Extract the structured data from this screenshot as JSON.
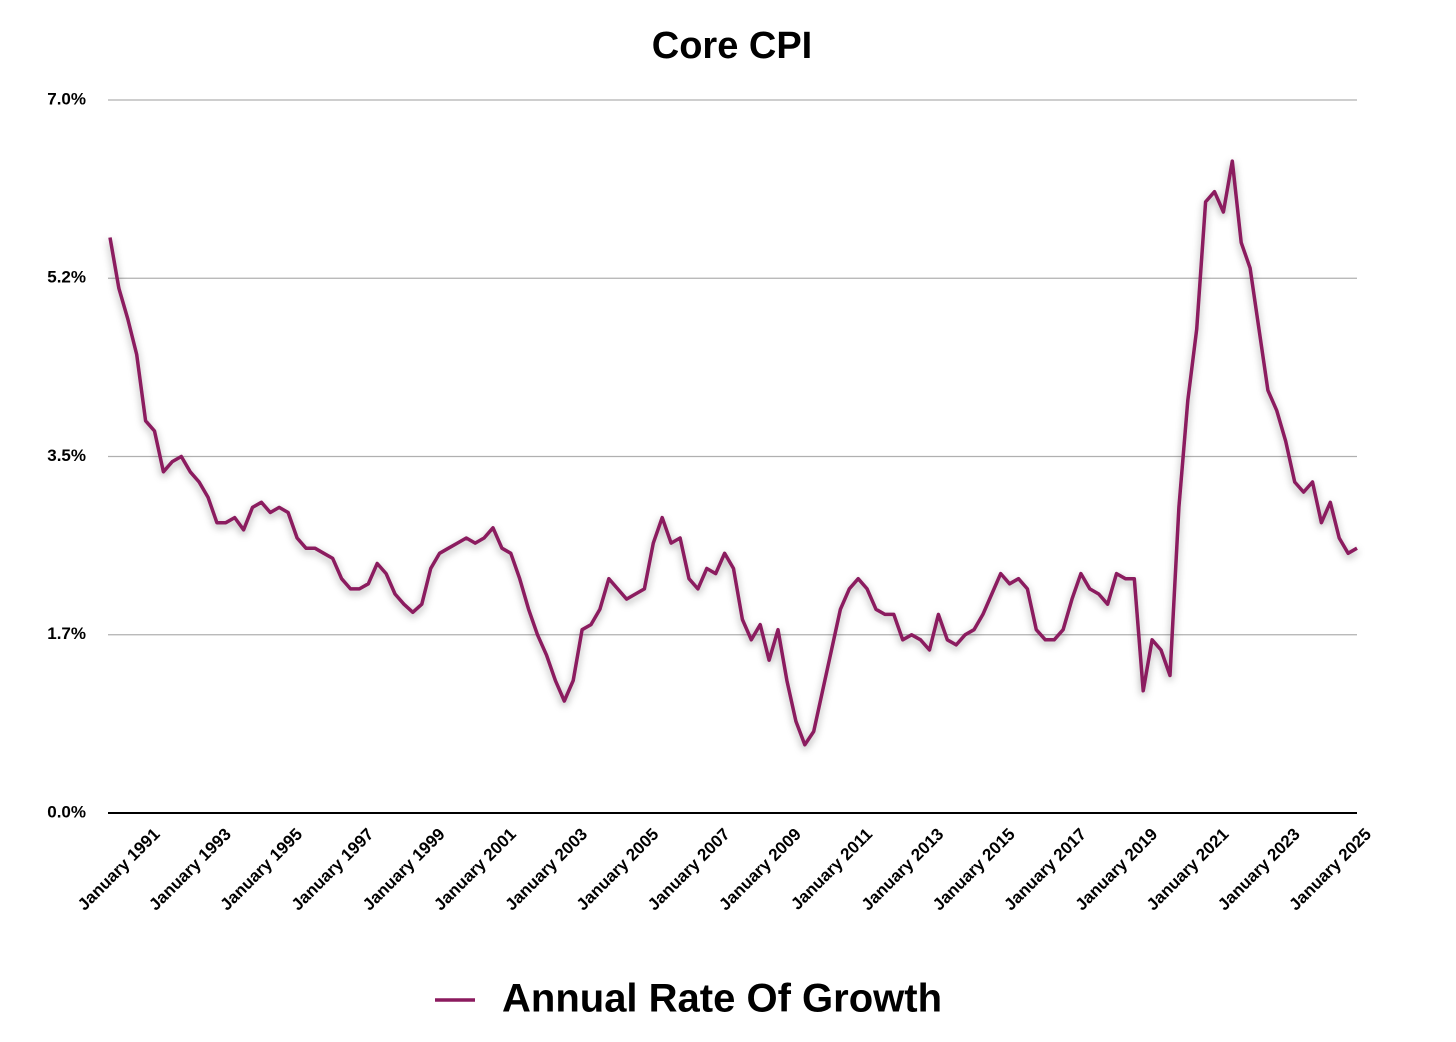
{
  "chart_data": {
    "type": "line",
    "title": "Core CPI",
    "categories": [
      null,
      null,
      null,
      null,
      "January 1991",
      null,
      null,
      null,
      null,
      null,
      null,
      null,
      "January 1993",
      null,
      null,
      null,
      null,
      null,
      null,
      null,
      "January 1995",
      null,
      null,
      null,
      null,
      null,
      null,
      null,
      "January 1997",
      null,
      null,
      null,
      null,
      null,
      null,
      null,
      "January 1999",
      null,
      null,
      null,
      null,
      null,
      null,
      null,
      "January 2001",
      null,
      null,
      null,
      null,
      null,
      null,
      null,
      "January 2003",
      null,
      null,
      null,
      null,
      null,
      null,
      null,
      "January 2005",
      null,
      null,
      null,
      null,
      null,
      null,
      null,
      "January 2007",
      null,
      null,
      null,
      null,
      null,
      null,
      null,
      "January 2009",
      null,
      null,
      null,
      null,
      null,
      null,
      null,
      "January 2011",
      null,
      null,
      null,
      null,
      null,
      null,
      null,
      "January 2013",
      null,
      null,
      null,
      null,
      null,
      null,
      null,
      "January 2015",
      null,
      null,
      null,
      null,
      null,
      null,
      null,
      "January 2017",
      null,
      null,
      null,
      null,
      null,
      null,
      null,
      "January 2019",
      null,
      null,
      null,
      null,
      null,
      null,
      null,
      "January 2021",
      null,
      null,
      null,
      null,
      null,
      null,
      null,
      "January 2023",
      null,
      null,
      null,
      null,
      null,
      null,
      null,
      "January 2025"
    ],
    "series": [
      {
        "name": "Annual Rate Of Growth",
        "color": "#8b1a5e",
        "values": [
          5.65,
          5.15,
          4.85,
          4.5,
          3.85,
          3.75,
          3.35,
          3.45,
          3.5,
          3.35,
          3.25,
          3.1,
          2.85,
          2.85,
          2.9,
          2.78,
          3.0,
          3.05,
          2.95,
          3.0,
          2.95,
          2.7,
          2.6,
          2.6,
          2.55,
          2.5,
          2.3,
          2.2,
          2.2,
          2.25,
          2.45,
          2.35,
          2.15,
          2.05,
          1.97,
          2.05,
          2.4,
          2.55,
          2.6,
          2.65,
          2.7,
          2.65,
          2.7,
          2.8,
          2.6,
          2.55,
          2.3,
          2.0,
          1.75,
          1.55,
          1.3,
          1.1,
          1.3,
          1.8,
          1.85,
          2.0,
          2.3,
          2.2,
          2.1,
          2.15,
          2.2,
          2.65,
          2.9,
          2.65,
          2.7,
          2.3,
          2.2,
          2.4,
          2.35,
          2.55,
          2.4,
          1.9,
          1.7,
          1.85,
          1.5,
          1.8,
          1.3,
          0.9,
          0.67,
          0.8,
          1.2,
          1.6,
          2.0,
          2.2,
          2.3,
          2.2,
          2.0,
          1.95,
          1.95,
          1.7,
          1.75,
          1.7,
          1.6,
          1.95,
          1.7,
          1.65,
          1.75,
          1.8,
          1.95,
          2.15,
          2.35,
          2.25,
          2.3,
          2.2,
          1.8,
          1.7,
          1.7,
          1.8,
          2.1,
          2.35,
          2.2,
          2.15,
          2.05,
          2.35,
          2.3,
          2.3,
          1.2,
          1.7,
          1.6,
          1.35,
          3.0,
          4.05,
          4.75,
          6.0,
          6.1,
          5.9,
          6.4,
          5.6,
          5.35,
          4.75,
          4.15,
          3.95,
          3.65,
          3.25,
          3.15,
          3.25,
          2.85,
          3.05,
          2.7,
          2.55,
          2.6
        ]
      }
    ],
    "ylim": [
      0,
      7
    ],
    "yticks": [
      {
        "value": 0,
        "label": "0.0%"
      },
      {
        "value": 1.75,
        "label": "1.7%"
      },
      {
        "value": 3.5,
        "label": "3.5%"
      },
      {
        "value": 5.25,
        "label": "5.2%"
      },
      {
        "value": 7,
        "label": "7.0%"
      }
    ],
    "grid": true,
    "legend": "bottom"
  }
}
